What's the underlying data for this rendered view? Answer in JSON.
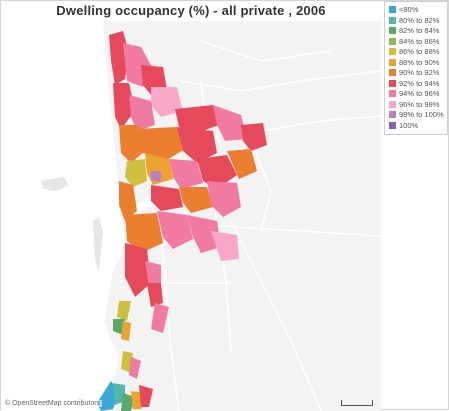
{
  "map": {
    "title": "Dwelling occupancy (%) - all private , 2006",
    "attribution": "© OpenStreetMap contributors",
    "land_color": "#f3f3f3",
    "water_color": "#ffffff",
    "road_color": "#ffffff"
  },
  "legend": {
    "items": [
      {
        "label": "<80%",
        "color": "#3aa7d6"
      },
      {
        "label": "80% to 82%",
        "color": "#52b8a8"
      },
      {
        "label": "82% to 84%",
        "color": "#5aa86a"
      },
      {
        "label": "84% to 86%",
        "color": "#94b857"
      },
      {
        "label": "86% to 88%",
        "color": "#cfbf3f"
      },
      {
        "label": "88% to 90%",
        "color": "#eaa32e"
      },
      {
        "label": "90% to 92%",
        "color": "#ec7f2f"
      },
      {
        "label": "92% to 94%",
        "color": "#e5495b"
      },
      {
        "label": "94% to 96%",
        "color": "#f07aa1"
      },
      {
        "label": "96% to 98%",
        "color": "#f7a8c8"
      },
      {
        "label": "98% to 100%",
        "color": "#b77fc5"
      },
      {
        "label": "100%",
        "color": "#8a5fae"
      }
    ]
  }
}
